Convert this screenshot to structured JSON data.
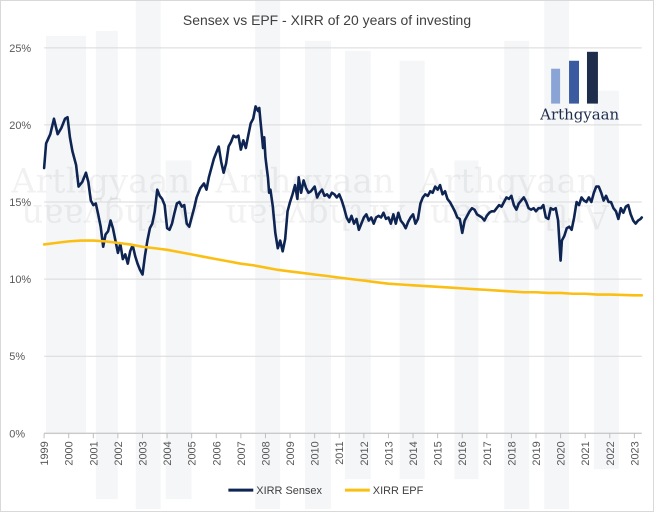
{
  "chart_data": {
    "type": "line",
    "title": "Sensex vs EPF - XIRR of 20 years of investing",
    "xlabel": "",
    "ylabel": "",
    "x_range": [
      1999.0,
      2023.3
    ],
    "ylim": [
      0,
      25
    ],
    "y_ticks": [
      0,
      5,
      10,
      15,
      20,
      25
    ],
    "y_tick_labels": [
      "0%",
      "5%",
      "10%",
      "15%",
      "20%",
      "25%"
    ],
    "x_tick_labels": [
      "1999",
      "2000",
      "2001",
      "2002",
      "2003",
      "2004",
      "2005",
      "2006",
      "2007",
      "2008",
      "2009",
      "2010",
      "2011",
      "2012",
      "2013",
      "2014",
      "2015",
      "2016",
      "2017",
      "2018",
      "2019",
      "2020",
      "2021",
      "2022",
      "2023"
    ],
    "grid": true,
    "legend_position": "bottom",
    "series": [
      {
        "name": "XIRR Sensex",
        "color": "#0e2453",
        "points": [
          [
            1999.0,
            17.2
          ],
          [
            1999.08,
            18.8
          ],
          [
            1999.25,
            19.4
          ],
          [
            1999.4,
            20.4
          ],
          [
            1999.55,
            19.4
          ],
          [
            1999.7,
            19.8
          ],
          [
            1999.85,
            20.4
          ],
          [
            1999.95,
            20.5
          ],
          [
            2000.05,
            19.2
          ],
          [
            2000.15,
            18.3
          ],
          [
            2000.3,
            17.4
          ],
          [
            2000.4,
            16.0
          ],
          [
            2000.55,
            16.3
          ],
          [
            2000.7,
            16.9
          ],
          [
            2000.8,
            16.3
          ],
          [
            2000.9,
            15.1
          ],
          [
            2001.0,
            14.8
          ],
          [
            2001.1,
            14.9
          ],
          [
            2001.2,
            14.2
          ],
          [
            2001.3,
            13.4
          ],
          [
            2001.4,
            12.1
          ],
          [
            2001.5,
            12.9
          ],
          [
            2001.6,
            13.1
          ],
          [
            2001.7,
            13.8
          ],
          [
            2001.8,
            13.3
          ],
          [
            2001.9,
            12.5
          ],
          [
            2002.0,
            11.7
          ],
          [
            2002.1,
            12.3
          ],
          [
            2002.2,
            11.3
          ],
          [
            2002.3,
            11.6
          ],
          [
            2002.4,
            11.0
          ],
          [
            2002.5,
            11.8
          ],
          [
            2002.6,
            12.2
          ],
          [
            2002.7,
            11.5
          ],
          [
            2002.8,
            11.0
          ],
          [
            2002.9,
            10.6
          ],
          [
            2003.0,
            10.3
          ],
          [
            2003.1,
            11.5
          ],
          [
            2003.2,
            12.5
          ],
          [
            2003.3,
            13.3
          ],
          [
            2003.4,
            13.6
          ],
          [
            2003.5,
            14.4
          ],
          [
            2003.6,
            15.8
          ],
          [
            2003.7,
            15.4
          ],
          [
            2003.8,
            15.2
          ],
          [
            2003.9,
            14.8
          ],
          [
            2004.0,
            13.3
          ],
          [
            2004.1,
            13.2
          ],
          [
            2004.2,
            13.6
          ],
          [
            2004.3,
            14.3
          ],
          [
            2004.4,
            14.9
          ],
          [
            2004.5,
            15.0
          ],
          [
            2004.6,
            14.7
          ],
          [
            2004.7,
            14.8
          ],
          [
            2004.8,
            13.6
          ],
          [
            2004.9,
            13.4
          ],
          [
            2005.0,
            14.0
          ],
          [
            2005.1,
            14.6
          ],
          [
            2005.2,
            15.3
          ],
          [
            2005.35,
            15.9
          ],
          [
            2005.5,
            16.2
          ],
          [
            2005.6,
            15.8
          ],
          [
            2005.7,
            16.6
          ],
          [
            2005.8,
            17.2
          ],
          [
            2005.9,
            17.8
          ],
          [
            2006.0,
            18.2
          ],
          [
            2006.1,
            18.6
          ],
          [
            2006.2,
            17.6
          ],
          [
            2006.3,
            16.9
          ],
          [
            2006.4,
            17.5
          ],
          [
            2006.5,
            18.6
          ],
          [
            2006.6,
            18.9
          ],
          [
            2006.7,
            19.3
          ],
          [
            2006.8,
            19.2
          ],
          [
            2006.9,
            19.3
          ],
          [
            2007.0,
            18.4
          ],
          [
            2007.1,
            19.0
          ],
          [
            2007.2,
            18.5
          ],
          [
            2007.3,
            19.3
          ],
          [
            2007.4,
            20.1
          ],
          [
            2007.5,
            20.4
          ],
          [
            2007.6,
            21.2
          ],
          [
            2007.7,
            20.9
          ],
          [
            2007.75,
            21.1
          ],
          [
            2007.8,
            20.2
          ],
          [
            2007.85,
            19.4
          ],
          [
            2007.9,
            18.5
          ],
          [
            2007.95,
            19.2
          ],
          [
            2008.0,
            17.9
          ],
          [
            2008.05,
            17.2
          ],
          [
            2008.1,
            16.6
          ],
          [
            2008.15,
            15.6
          ],
          [
            2008.2,
            15.8
          ],
          [
            2008.3,
            14.7
          ],
          [
            2008.4,
            13.0
          ],
          [
            2008.5,
            12.0
          ],
          [
            2008.6,
            12.5
          ],
          [
            2008.7,
            11.8
          ],
          [
            2008.8,
            12.6
          ],
          [
            2008.9,
            14.4
          ],
          [
            2009.0,
            15.0
          ],
          [
            2009.1,
            15.5
          ],
          [
            2009.2,
            16.1
          ],
          [
            2009.3,
            15.2
          ],
          [
            2009.35,
            16.6
          ],
          [
            2009.45,
            15.6
          ],
          [
            2009.55,
            16.4
          ],
          [
            2009.65,
            15.9
          ],
          [
            2009.75,
            15.6
          ],
          [
            2009.85,
            15.7
          ],
          [
            2010.0,
            16.0
          ],
          [
            2010.1,
            15.3
          ],
          [
            2010.2,
            15.6
          ],
          [
            2010.3,
            15.8
          ],
          [
            2010.4,
            15.4
          ],
          [
            2010.5,
            15.5
          ],
          [
            2010.6,
            15.3
          ],
          [
            2010.7,
            15.6
          ],
          [
            2010.8,
            15.5
          ],
          [
            2010.9,
            15.3
          ],
          [
            2011.0,
            15.5
          ],
          [
            2011.1,
            15.1
          ],
          [
            2011.2,
            14.6
          ],
          [
            2011.3,
            14.0
          ],
          [
            2011.4,
            13.7
          ],
          [
            2011.5,
            14.1
          ],
          [
            2011.6,
            13.6
          ],
          [
            2011.7,
            13.9
          ],
          [
            2011.8,
            13.2
          ],
          [
            2011.9,
            13.6
          ],
          [
            2012.0,
            14.0
          ],
          [
            2012.1,
            14.2
          ],
          [
            2012.2,
            13.8
          ],
          [
            2012.3,
            14.0
          ],
          [
            2012.4,
            13.6
          ],
          [
            2012.5,
            14.0
          ],
          [
            2012.6,
            14.1
          ],
          [
            2012.7,
            14.0
          ],
          [
            2012.8,
            14.3
          ],
          [
            2012.9,
            13.9
          ],
          [
            2013.0,
            14.0
          ],
          [
            2013.1,
            13.6
          ],
          [
            2013.2,
            14.2
          ],
          [
            2013.3,
            13.6
          ],
          [
            2013.4,
            14.3
          ],
          [
            2013.5,
            13.8
          ],
          [
            2013.6,
            13.6
          ],
          [
            2013.7,
            13.3
          ],
          [
            2013.8,
            13.7
          ],
          [
            2013.9,
            14.0
          ],
          [
            2014.0,
            14.2
          ],
          [
            2014.1,
            13.6
          ],
          [
            2014.2,
            13.9
          ],
          [
            2014.3,
            14.9
          ],
          [
            2014.4,
            15.3
          ],
          [
            2014.5,
            15.5
          ],
          [
            2014.6,
            15.4
          ],
          [
            2014.7,
            15.7
          ],
          [
            2014.8,
            15.6
          ],
          [
            2014.9,
            16.0
          ],
          [
            2015.0,
            15.8
          ],
          [
            2015.1,
            16.1
          ],
          [
            2015.2,
            15.5
          ],
          [
            2015.3,
            15.7
          ],
          [
            2015.4,
            15.2
          ],
          [
            2015.5,
            15.0
          ],
          [
            2015.6,
            14.7
          ],
          [
            2015.7,
            14.4
          ],
          [
            2015.8,
            14.0
          ],
          [
            2015.9,
            13.9
          ],
          [
            2016.0,
            13.0
          ],
          [
            2016.1,
            13.8
          ],
          [
            2016.2,
            14.1
          ],
          [
            2016.3,
            14.4
          ],
          [
            2016.4,
            14.6
          ],
          [
            2016.5,
            14.5
          ],
          [
            2016.6,
            14.2
          ],
          [
            2016.7,
            14.1
          ],
          [
            2016.8,
            14.0
          ],
          [
            2016.9,
            13.8
          ],
          [
            2017.0,
            14.1
          ],
          [
            2017.1,
            14.3
          ],
          [
            2017.2,
            14.4
          ],
          [
            2017.3,
            14.4
          ],
          [
            2017.4,
            14.6
          ],
          [
            2017.5,
            14.8
          ],
          [
            2017.6,
            14.7
          ],
          [
            2017.7,
            15.0
          ],
          [
            2017.8,
            15.3
          ],
          [
            2017.9,
            15.2
          ],
          [
            2018.0,
            15.4
          ],
          [
            2018.1,
            14.8
          ],
          [
            2018.2,
            14.5
          ],
          [
            2018.3,
            14.9
          ],
          [
            2018.4,
            15.1
          ],
          [
            2018.5,
            15.3
          ],
          [
            2018.6,
            15.0
          ],
          [
            2018.7,
            14.6
          ],
          [
            2018.8,
            14.5
          ],
          [
            2018.9,
            14.6
          ],
          [
            2019.0,
            14.4
          ],
          [
            2019.1,
            14.6
          ],
          [
            2019.2,
            14.6
          ],
          [
            2019.3,
            14.8
          ],
          [
            2019.4,
            14.0
          ],
          [
            2019.5,
            13.9
          ],
          [
            2019.6,
            14.6
          ],
          [
            2019.7,
            14.5
          ],
          [
            2019.8,
            14.6
          ],
          [
            2019.9,
            13.8
          ],
          [
            2020.0,
            11.2
          ],
          [
            2020.05,
            12.5
          ],
          [
            2020.15,
            12.8
          ],
          [
            2020.25,
            13.3
          ],
          [
            2020.35,
            13.4
          ],
          [
            2020.45,
            13.2
          ],
          [
            2020.55,
            14.0
          ],
          [
            2020.65,
            15.0
          ],
          [
            2020.75,
            14.8
          ],
          [
            2020.85,
            15.3
          ],
          [
            2020.95,
            15.1
          ],
          [
            2021.05,
            15.0
          ],
          [
            2021.15,
            15.3
          ],
          [
            2021.25,
            15.0
          ],
          [
            2021.35,
            15.6
          ],
          [
            2021.45,
            16.0
          ],
          [
            2021.55,
            16.0
          ],
          [
            2021.65,
            15.6
          ],
          [
            2021.75,
            15.1
          ],
          [
            2021.85,
            15.4
          ],
          [
            2021.95,
            15.0
          ],
          [
            2022.05,
            15.0
          ],
          [
            2022.15,
            14.6
          ],
          [
            2022.25,
            14.4
          ],
          [
            2022.35,
            13.9
          ],
          [
            2022.45,
            14.6
          ],
          [
            2022.55,
            14.3
          ],
          [
            2022.65,
            14.7
          ],
          [
            2022.75,
            14.8
          ],
          [
            2022.85,
            14.2
          ],
          [
            2022.95,
            13.8
          ],
          [
            2023.05,
            13.6
          ],
          [
            2023.15,
            13.8
          ],
          [
            2023.25,
            13.9
          ],
          [
            2023.3,
            14.0
          ]
        ]
      },
      {
        "name": "XIRR EPF",
        "color": "#fbbf14",
        "points": [
          [
            1999.0,
            12.25
          ],
          [
            1999.5,
            12.35
          ],
          [
            2000.0,
            12.45
          ],
          [
            2000.5,
            12.5
          ],
          [
            2001.0,
            12.5
          ],
          [
            2001.5,
            12.45
          ],
          [
            2002.0,
            12.35
          ],
          [
            2002.5,
            12.25
          ],
          [
            2003.0,
            12.1
          ],
          [
            2003.5,
            12.0
          ],
          [
            2004.0,
            11.9
          ],
          [
            2004.5,
            11.75
          ],
          [
            2005.0,
            11.6
          ],
          [
            2005.5,
            11.45
          ],
          [
            2006.0,
            11.3
          ],
          [
            2006.5,
            11.15
          ],
          [
            2007.0,
            11.0
          ],
          [
            2007.5,
            10.9
          ],
          [
            2008.0,
            10.75
          ],
          [
            2008.5,
            10.6
          ],
          [
            2009.0,
            10.5
          ],
          [
            2009.5,
            10.4
          ],
          [
            2010.0,
            10.3
          ],
          [
            2010.5,
            10.2
          ],
          [
            2011.0,
            10.1
          ],
          [
            2011.5,
            10.0
          ],
          [
            2012.0,
            9.9
          ],
          [
            2012.5,
            9.8
          ],
          [
            2013.0,
            9.7
          ],
          [
            2013.5,
            9.65
          ],
          [
            2014.0,
            9.6
          ],
          [
            2014.5,
            9.55
          ],
          [
            2015.0,
            9.5
          ],
          [
            2015.5,
            9.45
          ],
          [
            2016.0,
            9.4
          ],
          [
            2016.5,
            9.35
          ],
          [
            2017.0,
            9.3
          ],
          [
            2017.5,
            9.25
          ],
          [
            2018.0,
            9.2
          ],
          [
            2018.5,
            9.15
          ],
          [
            2019.0,
            9.15
          ],
          [
            2019.5,
            9.1
          ],
          [
            2020.0,
            9.1
          ],
          [
            2020.5,
            9.05
          ],
          [
            2021.0,
            9.05
          ],
          [
            2021.5,
            9.0
          ],
          [
            2022.0,
            9.0
          ],
          [
            2022.5,
            8.97
          ],
          [
            2023.0,
            8.95
          ],
          [
            2023.3,
            8.95
          ]
        ]
      }
    ]
  },
  "watermark": {
    "brand_text": "Arthgyaan",
    "logo_bar_colors": [
      "#8aa4d6",
      "#3a5ba0",
      "#1f2d4d"
    ]
  }
}
